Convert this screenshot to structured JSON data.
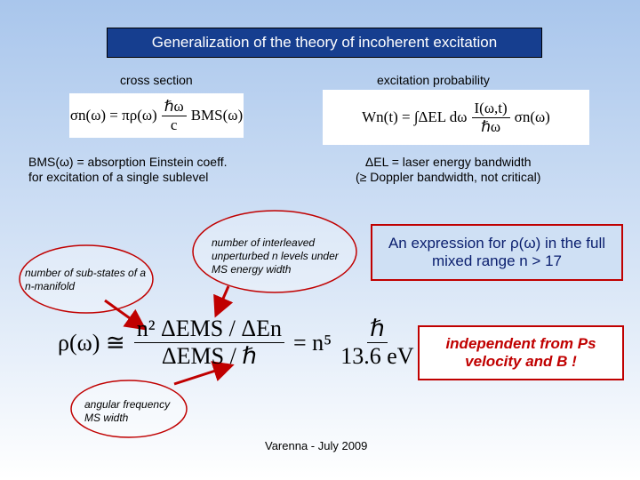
{
  "title": "Generalization of the theory of incoherent excitation",
  "left_label": "cross section",
  "right_label": "excitation probability",
  "cross_section_eq": {
    "lhs": "σn(ω) = πρ(ω)",
    "num": "ℏω",
    "den": "c",
    "rhs": "BMS(ω)"
  },
  "probability_eq": {
    "lhs": "Wn(t) = ∫ΔEL dω",
    "num": "I(ω,t)",
    "den": "ℏω",
    "rhs": "σn(ω)"
  },
  "left_note": [
    "BMS(ω) = absorption Einstein coeff.",
    "for excitation of a single sublevel"
  ],
  "right_note": [
    "ΔEL = laser energy bandwidth",
    "(≥ Doppler bandwidth, not critical)"
  ],
  "annotation_substates": "number of sub-states of a n-manifold",
  "annotation_levels": "number of interleaved unperturbed n levels under MS energy width",
  "annotation_frequency": "angular frequency MS width",
  "highlight": "An expression for ρ(ω) in the full mixed range  n > 17",
  "main_eq": {
    "lhs": "ρ(ω) ≅",
    "num1": "n² ΔEMS / ΔEn",
    "den1": "ΔEMS / ℏ",
    "mid": "= n⁵",
    "num2": "ℏ",
    "den2": "13.6 eV"
  },
  "conclusion": "independent from Ps velocity and B !",
  "footer": "Varenna - July 2009"
}
